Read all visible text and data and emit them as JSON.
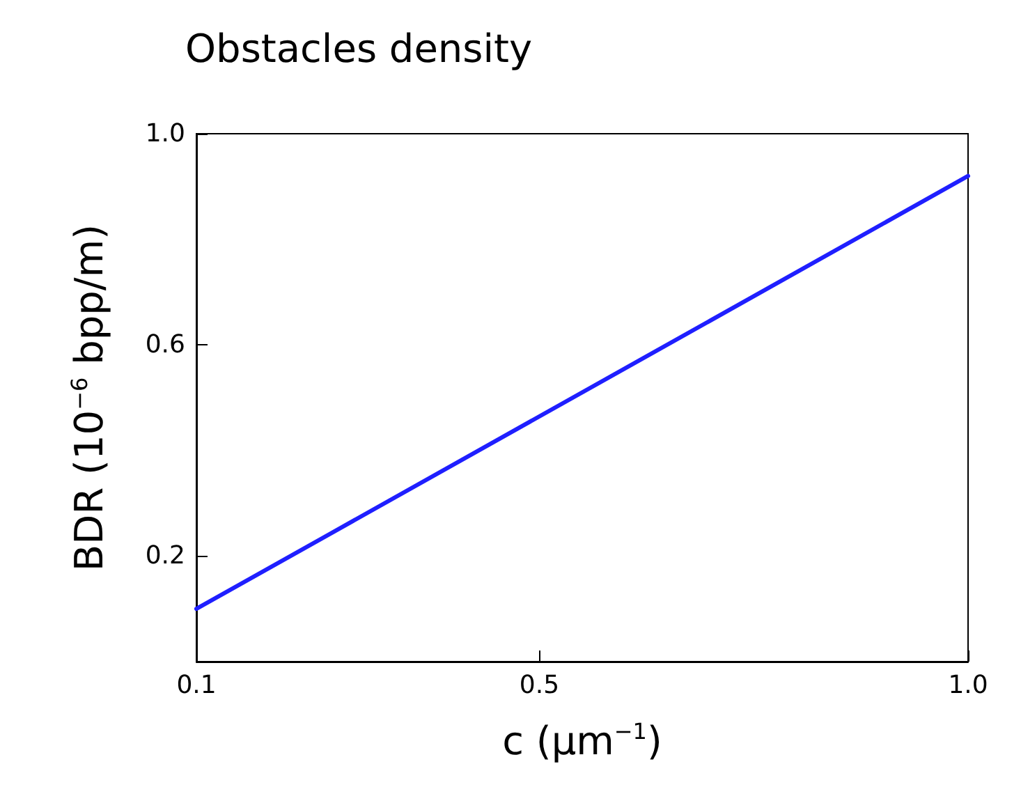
{
  "chart_data": {
    "type": "line",
    "title": "Obstacles density",
    "xlabel": "c (μm$^{−1}$)",
    "ylabel": "BDR (10$^{−6}$ bpp/m)",
    "x": [
      0.1,
      1.0
    ],
    "series": [
      {
        "color": "#1f1fff",
        "values": [
          0.1,
          0.92
        ]
      }
    ],
    "xlim": [
      0.1,
      1.0
    ],
    "xticks": [
      0.1,
      0.5,
      {
        "value": 1,
        "label": "1.0"
      }
    ],
    "ylim": [
      0,
      1.0
    ],
    "yticks": [
      0.2,
      0.6,
      {
        "value": 1,
        "label": "1.0"
      }
    ],
    "grid": false,
    "marker": "none",
    "line_style": "solid"
  }
}
